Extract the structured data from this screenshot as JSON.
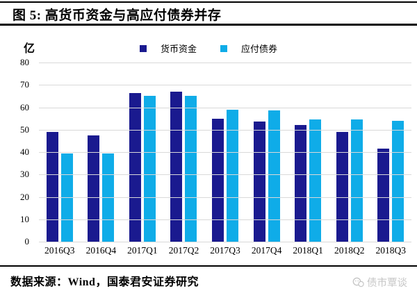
{
  "page": {
    "title": "图 5: 高货币资金与高应付债券并存",
    "unit_label": "亿",
    "source_note": "数据来源：Wind，国泰君安证券研究",
    "watermark_text": "债市覃谈"
  },
  "colors": {
    "series1": "#1a1a8f",
    "series2": "#0face8",
    "gridline": "#d9d9d9",
    "rule": "#000000",
    "watermark": "#c6c6c6"
  },
  "chart_data": {
    "type": "bar",
    "title": "图 5: 高货币资金与高应付债券并存",
    "categories": [
      "2016Q3",
      "2016Q4",
      "2017Q1",
      "2017Q2",
      "2017Q3",
      "2017Q4",
      "2018Q1",
      "2018Q2",
      "2018Q3"
    ],
    "series": [
      {
        "name": "货币资金",
        "color": "#1a1a8f",
        "values": [
          49,
          47.5,
          66.5,
          67,
          55,
          53.5,
          52,
          49,
          41.5
        ]
      },
      {
        "name": "应付债券",
        "color": "#0face8",
        "values": [
          39.5,
          39.5,
          65,
          65,
          59,
          58.5,
          54.5,
          54.5,
          54
        ]
      }
    ],
    "xlabel": "",
    "ylabel": "亿",
    "ylim": [
      0,
      80
    ],
    "ytick_step": 10,
    "grid": true,
    "legend_position": "top-center"
  }
}
